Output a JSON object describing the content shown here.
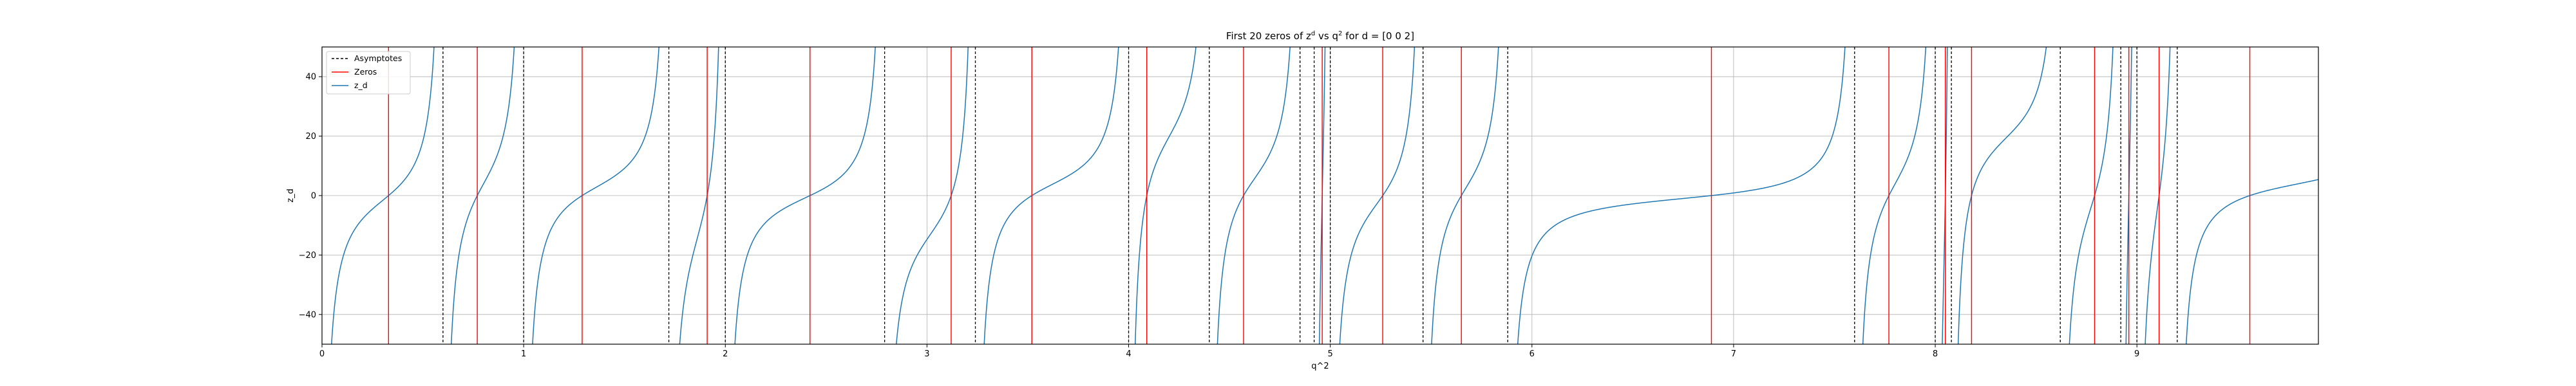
{
  "chart_data": {
    "type": "line",
    "title_parts": {
      "lead": "First 20 zeros of z",
      "sup1": "d",
      "mid": " vs q",
      "sup2": "2",
      "tail": " for d = [0 0 2]"
    },
    "xlabel": "q^2",
    "ylabel": "z_d",
    "xlim": [
      0,
      9.9
    ],
    "ylim": [
      -50,
      50
    ],
    "x_ticks": [
      0,
      1,
      2,
      3,
      4,
      5,
      6,
      7,
      8,
      9
    ],
    "y_ticks": [
      -40,
      -20,
      0,
      20,
      40
    ],
    "grid": true,
    "legend_position": "top-left",
    "legend": [
      {
        "label": "Asymptotes",
        "style": "dashed",
        "color": "#000000"
      },
      {
        "label": "Zeros",
        "style": "solid",
        "color": "#ff0000"
      },
      {
        "label": "z_d",
        "style": "solid",
        "color": "#1f77b4"
      }
    ],
    "asymptotes": [
      0,
      0.6,
      1.0,
      1.72,
      2.0,
      2.79,
      3.24,
      4.0,
      4.4,
      4.85,
      4.92,
      5.0,
      5.46,
      5.88,
      7.6,
      8.0,
      8.08,
      8.62,
      8.92,
      9.0,
      9.2
    ],
    "zeros": [
      0.33,
      0.77,
      1.29,
      1.91,
      2.42,
      3.12,
      3.52,
      4.09,
      4.57,
      4.96,
      5.26,
      5.65,
      6.89,
      7.77,
      8.05,
      8.18,
      8.79,
      8.96,
      9.11,
      9.56
    ],
    "series": [
      {
        "name": "z_d",
        "color": "#1f77b4"
      }
    ]
  }
}
